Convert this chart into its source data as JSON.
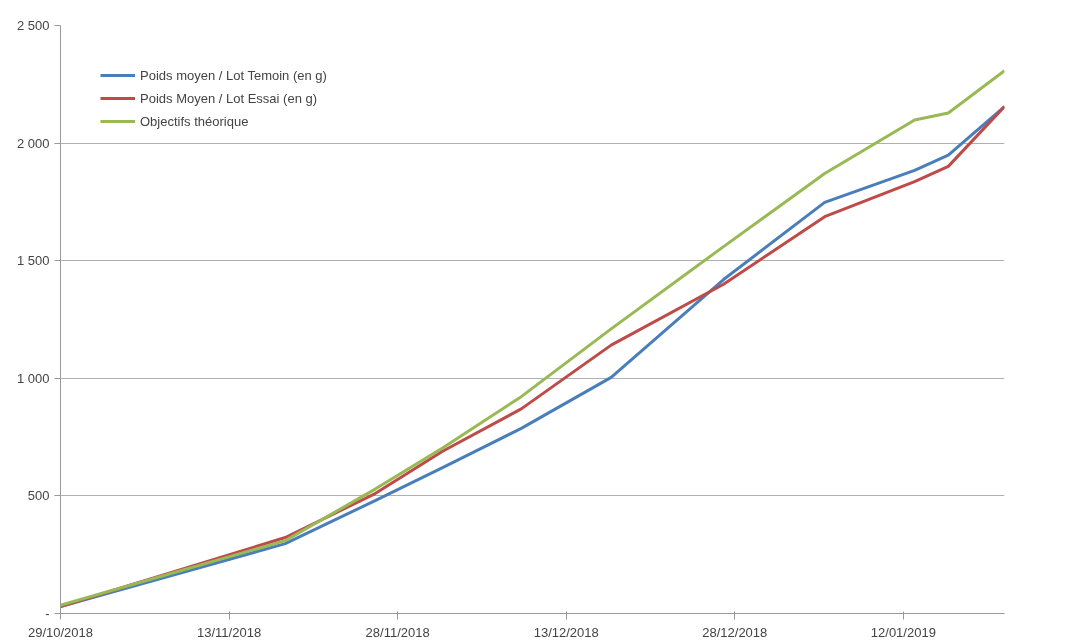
{
  "chart_data": {
    "type": "line",
    "x": [
      "2018-10-29",
      "2018-11-18",
      "2018-11-26",
      "2018-12-02",
      "2018-12-09",
      "2018-12-17",
      "2018-12-27",
      "2019-01-05",
      "2019-01-13",
      "2019-01-16",
      "2019-01-21"
    ],
    "series": [
      {
        "name": "Poids moyen / Lot Temoin (en g)",
        "color": "#4a7ebb",
        "values": [
          30,
          297,
          480,
          620,
          787,
          1004,
          1420,
          1748,
          1884,
          1949,
          2155
        ]
      },
      {
        "name": "Poids Moyen / Lot Essai (en g)",
        "color": "#be4b48",
        "values": [
          30,
          323,
          510,
          690,
          870,
          1141,
          1400,
          1687,
          1836,
          1901,
          2155
        ]
      },
      {
        "name": "Objectifs théorique",
        "color": "#98b954",
        "values": [
          35,
          310,
          529,
          704,
          922,
          1210,
          1560,
          1871,
          2098,
          2128,
          2308
        ]
      }
    ],
    "xlim": [
      "2018-10-29",
      "2019-01-21"
    ],
    "xticks": [
      {
        "value": "2018-10-29",
        "label": "29/10/2018"
      },
      {
        "value": "2018-11-13",
        "label": "13/11/2018"
      },
      {
        "value": "2018-11-28",
        "label": "28/11/2018"
      },
      {
        "value": "2018-12-13",
        "label": "13/12/2018"
      },
      {
        "value": "2018-12-28",
        "label": "28/12/2018"
      },
      {
        "value": "2019-01-12",
        "label": "12/01/2019"
      }
    ],
    "ylim": [
      0,
      2500
    ],
    "yticks": [
      {
        "value": 0,
        "label": "-"
      },
      500,
      {
        "value": 1000,
        "label": "1 000"
      },
      {
        "value": 1500,
        "label": "1 500"
      },
      {
        "value": 2000,
        "label": "2 000"
      },
      {
        "value": 2500,
        "label": "2 500"
      }
    ],
    "grid": "y",
    "legend": "top left",
    "marker": "none",
    "line_style": "solid"
  }
}
